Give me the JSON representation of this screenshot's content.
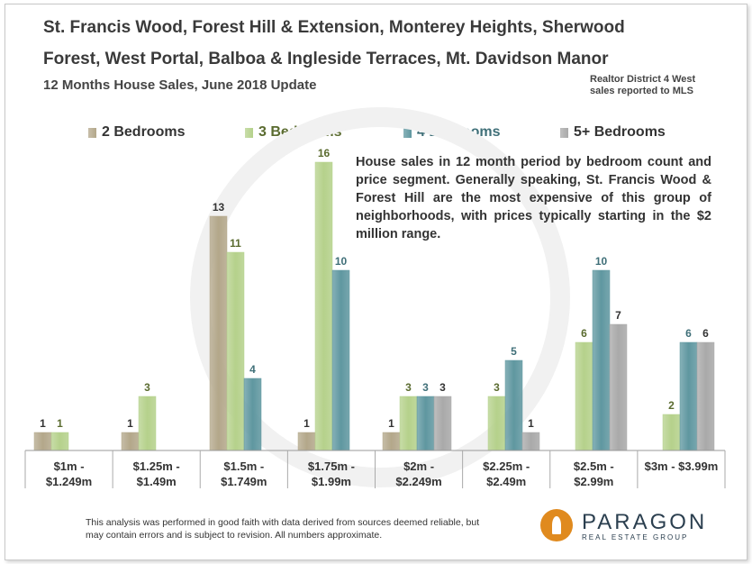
{
  "header": {
    "title_line1": "St. Francis Wood, Forest Hill & Extension, Monterey Heights, Sherwood",
    "title_line2": "Forest, West Portal, Balboa & Ingleside Terraces, Mt. Davidson Manor",
    "subtitle": "12 Months House Sales, June 2018 Update",
    "note_line1": "Realtor District  4 West",
    "note_line2": "sales reported to MLS"
  },
  "description": "House sales in 12 month period by bedroom count and price segment. Generally speaking, St. Francis Wood & Forest Hill are the most expensive of this group of neighborhoods, with prices typically starting in the $2 million range.",
  "footer": {
    "disclaimer": "This analysis was performed in good faith with data derived from sources deemed reliable, but may contain errors and is subject to revision. All numbers approximate.",
    "logo_name": "PARAGON",
    "logo_sub": "REAL ESTATE GROUP"
  },
  "colors": {
    "2br": "#b3a78a",
    "3br": "#b5d18b",
    "4br": "#5f97a0",
    "5br": "#a9a9a9"
  },
  "chart_data": {
    "type": "bar",
    "categories": [
      [
        "$1m -",
        "$1.249m"
      ],
      [
        "$1.25m -",
        "$1.49m"
      ],
      [
        "$1.5m -",
        "$1.749m"
      ],
      [
        "$1.75m -",
        "$1.99m"
      ],
      [
        "$2m -",
        "$2.249m"
      ],
      [
        "$2.25m -",
        "$2.49m"
      ],
      [
        "$2.5m -",
        "$2.99m"
      ],
      [
        "$3m - $3.99m"
      ]
    ],
    "series": [
      {
        "name": "2 Bedrooms",
        "key": "2br",
        "values": [
          1,
          1,
          13,
          1,
          1,
          null,
          null,
          null
        ]
      },
      {
        "name": "3 Bedrooms",
        "key": "3br",
        "values": [
          1,
          3,
          11,
          16,
          3,
          3,
          6,
          2
        ]
      },
      {
        "name": "4 Bedrooms",
        "key": "4br",
        "values": [
          null,
          null,
          4,
          10,
          3,
          5,
          10,
          6
        ]
      },
      {
        "name": "5+ Bedrooms",
        "key": "5br",
        "values": [
          null,
          null,
          null,
          null,
          3,
          1,
          7,
          6
        ]
      }
    ],
    "ylim": [
      0,
      16
    ],
    "grid": false,
    "legend": "top"
  }
}
